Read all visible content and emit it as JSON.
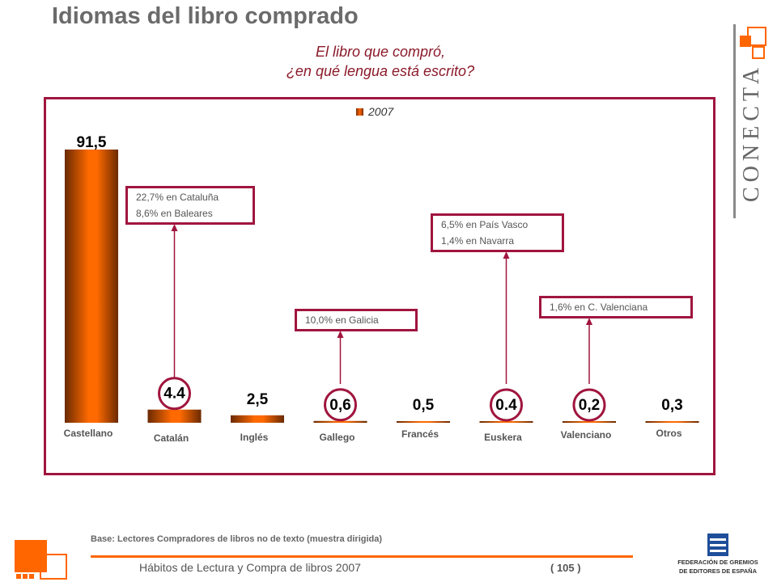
{
  "header": {
    "title": "Idiomas del libro comprado",
    "subtitle_line1": "El libro que compró,",
    "subtitle_line2": "¿en qué lengua está escrito?"
  },
  "brand": {
    "conecta": "CONECTA",
    "accent": "#ff6600",
    "frame_color": "#a0153e"
  },
  "chart_data": {
    "type": "bar",
    "legend": [
      "2007"
    ],
    "categories": [
      "Castellano",
      "Catalán",
      "Inglés",
      "Gallego",
      "Francés",
      "Euskera",
      "Valenciano",
      "Otros"
    ],
    "value_labels": [
      "91,5",
      "4.4",
      "2,5",
      "0,6",
      "0,5",
      "0.4",
      "0,2",
      "0,3"
    ],
    "series": [
      {
        "name": "2007",
        "values": [
          91.5,
          4.4,
          2.5,
          0.6,
          0.5,
          0.4,
          0.2,
          0.3
        ]
      }
    ],
    "ylim": [
      0,
      100
    ],
    "circled": [
      "Catalán",
      "Gallego",
      "Euskera",
      "Valenciano"
    ],
    "annotations": [
      {
        "category": "Catalán",
        "lines": [
          "22,7% en Cataluña",
          "8,6% en Baleares"
        ]
      },
      {
        "category": "Gallego",
        "lines": [
          "10,0% en Galicia"
        ]
      },
      {
        "category": "Euskera",
        "lines": [
          "6,5% en País Vasco",
          "1,4% en Navarra"
        ]
      },
      {
        "category": "Valenciano",
        "lines": [
          "1,6% en C. Valenciana"
        ]
      }
    ]
  },
  "footer": {
    "base_note": "Base: Lectores Compradores de libros no de texto (muestra dirigida)",
    "report_title": "Hábitos de Lectura y Compra de libros 2007",
    "page": "( 105 )",
    "federation_line1": "FEDERACIÓN DE GREMIOS",
    "federation_line2": "DE EDITORES DE ESPAÑA"
  }
}
